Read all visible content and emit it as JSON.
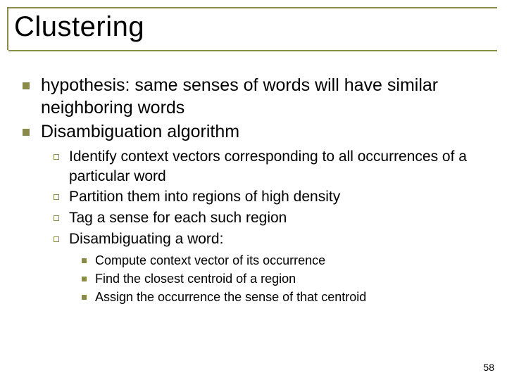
{
  "colors": {
    "accent": "#8a8a4a",
    "background": "#ffffff",
    "text": "#000000"
  },
  "typography": {
    "font_family": "Comic Sans MS",
    "title_fontsize": 40,
    "l1_fontsize": 25,
    "l2_fontsize": 21,
    "l3_fontsize": 18,
    "pagenum_fontsize": 14
  },
  "title": "Clustering",
  "bullets": {
    "l1": [
      "hypothesis: same senses of words will have similar neighboring words",
      "Disambiguation algorithm"
    ],
    "l2": [
      "Identify context vectors corresponding to all occurrences of a particular word",
      "Partition them into regions of high density",
      "Tag a sense for each such region",
      "Disambiguating a word:"
    ],
    "l3": [
      "Compute context vector of its occurrence",
      "Find the closest centroid of a region",
      "Assign the occurrence  the sense of that centroid"
    ]
  },
  "page_number": "58"
}
